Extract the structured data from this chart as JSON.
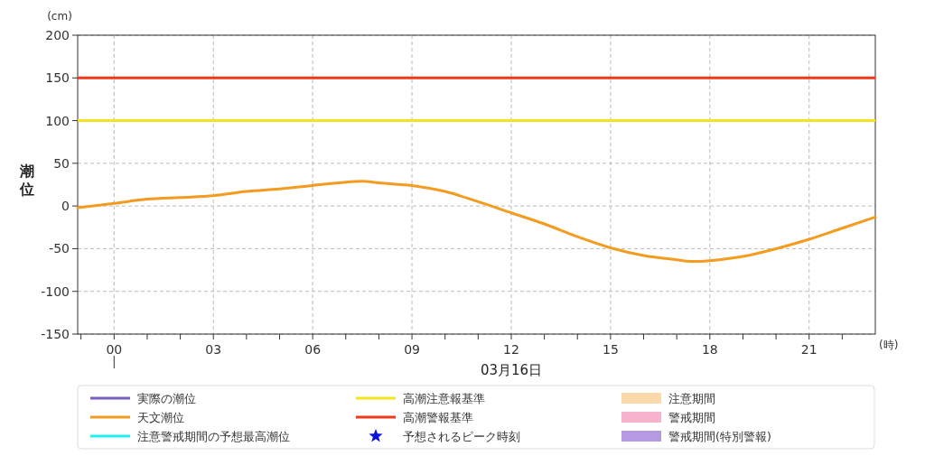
{
  "chart_data": {
    "type": "line",
    "ylabel": "潮位",
    "xlabel": "03月16日",
    "annotations": [
      "(cm)",
      "(時)"
    ],
    "x": [
      -1.1,
      0,
      1,
      2,
      3,
      4,
      5,
      6,
      7,
      7.5,
      8,
      9,
      10,
      11,
      12,
      13,
      14,
      15,
      16,
      17,
      17.5,
      18,
      19,
      20,
      21,
      22,
      23
    ],
    "series": [
      {
        "name": "実際の潮位",
        "color": "#7b5fc0",
        "values": [
          null,
          null,
          null,
          null,
          null,
          null,
          null,
          null,
          null,
          null,
          null,
          null,
          null,
          null,
          null,
          null,
          null,
          null,
          null,
          null,
          null,
          null,
          null,
          null,
          null,
          null,
          null
        ]
      },
      {
        "name": "天文潮位",
        "color": "#f39c1f",
        "values": [
          -2,
          3,
          8,
          10,
          12,
          17,
          20,
          24,
          28,
          29,
          27,
          24,
          17,
          5,
          -8,
          -21,
          -36,
          -49,
          -58,
          -63,
          -65,
          -64,
          -59,
          -50,
          -39,
          -26,
          -13
        ]
      },
      {
        "name": "注意警戒期間の予想最高潮位",
        "color": "#1ff0f0",
        "values": [
          null,
          null,
          null,
          null,
          null,
          null,
          null,
          null,
          null,
          null,
          null,
          null,
          null,
          null,
          null,
          null,
          null,
          null,
          null,
          null,
          null,
          null,
          null,
          null,
          null,
          null,
          null
        ]
      },
      {
        "name": "予想されるピーク時刻",
        "type": "scatter",
        "marker": "star",
        "color": "#0a14d8",
        "values": [
          null,
          null,
          null,
          null,
          null,
          null,
          null,
          null,
          null,
          null,
          null,
          null,
          null,
          null,
          null,
          null,
          null,
          null,
          null,
          null,
          null,
          null,
          null,
          null,
          null,
          null,
          null
        ]
      },
      {
        "name": "注意期間",
        "type": "area",
        "color": "#fcd9ab",
        "values": [
          null,
          null,
          null,
          null,
          null,
          null,
          null,
          null,
          null,
          null,
          null,
          null,
          null,
          null,
          null,
          null,
          null,
          null,
          null,
          null,
          null,
          null,
          null,
          null,
          null,
          null,
          null
        ]
      },
      {
        "name": "警戒期間",
        "type": "area",
        "color": "#f7b3cc",
        "values": [
          null,
          null,
          null,
          null,
          null,
          null,
          null,
          null,
          null,
          null,
          null,
          null,
          null,
          null,
          null,
          null,
          null,
          null,
          null,
          null,
          null,
          null,
          null,
          null,
          null,
          null,
          null
        ]
      },
      {
        "name": "警戒期間(特別警報)",
        "type": "area",
        "color": "#b49ae0",
        "values": [
          null,
          null,
          null,
          null,
          null,
          null,
          null,
          null,
          null,
          null,
          null,
          null,
          null,
          null,
          null,
          null,
          null,
          null,
          null,
          null,
          null,
          null,
          null,
          null,
          null,
          null,
          null
        ]
      }
    ],
    "ref_lines": [
      {
        "axis": "y",
        "value": 100,
        "label": "高潮注意報基準",
        "color": "#f2e423"
      },
      {
        "axis": "y",
        "value": 150,
        "label": "高潮警報基準",
        "color": "#ee3a1a"
      }
    ],
    "xlim": [
      -1.1,
      23
    ],
    "xticks": [
      {
        "value": -1,
        "label": null
      },
      {
        "value": 0,
        "label": "00"
      },
      {
        "value": 1,
        "label": null
      },
      {
        "value": 2,
        "label": null
      },
      {
        "value": 3,
        "label": "03"
      },
      {
        "value": 4,
        "label": null
      },
      {
        "value": 5,
        "label": null
      },
      {
        "value": 6,
        "label": "06"
      },
      {
        "value": 7,
        "label": null
      },
      {
        "value": 8,
        "label": null
      },
      {
        "value": 9,
        "label": "09"
      },
      {
        "value": 10,
        "label": null
      },
      {
        "value": 11,
        "label": null
      },
      {
        "value": 12,
        "label": "12"
      },
      {
        "value": 13,
        "label": null
      },
      {
        "value": 14,
        "label": null
      },
      {
        "value": 15,
        "label": "15"
      },
      {
        "value": 16,
        "label": null
      },
      {
        "value": 17,
        "label": null
      },
      {
        "value": 18,
        "label": "18"
      },
      {
        "value": 19,
        "label": null
      },
      {
        "value": 20,
        "label": null
      },
      {
        "value": 21,
        "label": "21"
      },
      {
        "value": 22,
        "label": null
      }
    ],
    "ylim": [
      -150,
      200
    ],
    "yticks": [
      -150,
      -100,
      -50,
      0,
      50,
      100,
      150,
      200
    ],
    "grid": true,
    "legend": "bottom",
    "line_style": "solid",
    "marker": "none"
  }
}
